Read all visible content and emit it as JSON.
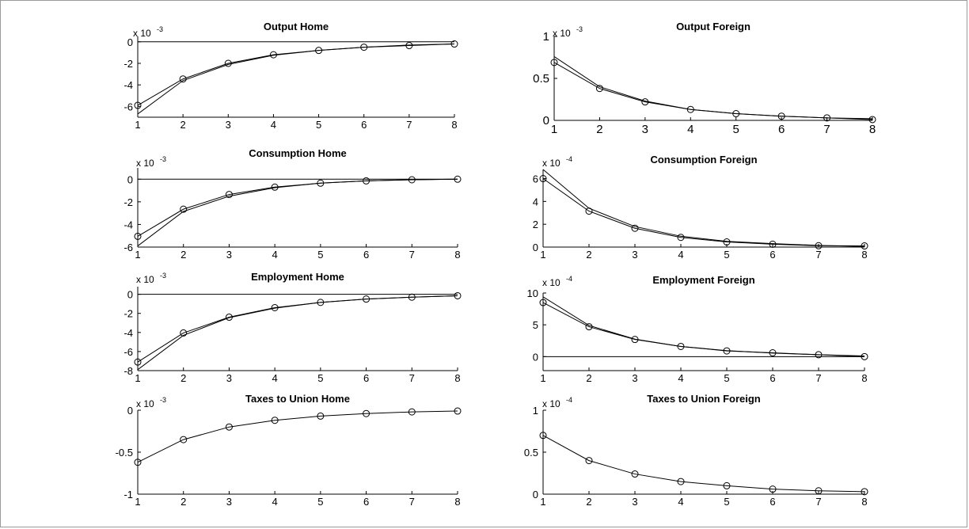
{
  "figure": {
    "charts": [
      {
        "title": "Output Home",
        "multiplier": {
          "base": "x 10",
          "exp": "-3"
        },
        "x_ticks": [
          "1",
          "2",
          "3",
          "4",
          "5",
          "6",
          "7",
          "8"
        ],
        "y_ticks": [
          "0",
          "-2",
          "-4",
          "-6"
        ]
      },
      {
        "title": "Output Foreign",
        "multiplier": {
          "base": "x 10",
          "exp": "-3"
        },
        "x_ticks": [
          "1",
          "2",
          "3",
          "4",
          "5",
          "6",
          "7",
          "8"
        ],
        "y_ticks": [
          "1",
          "0.5",
          "0"
        ]
      },
      {
        "title": "Consumption Home",
        "multiplier": {
          "base": "x 10",
          "exp": "-3"
        },
        "x_ticks": [
          "1",
          "2",
          "3",
          "4",
          "5",
          "6",
          "7",
          "8"
        ],
        "y_ticks": [
          "0",
          "-2",
          "-4",
          "-6"
        ]
      },
      {
        "title": "Consumption Foreign",
        "multiplier": {
          "base": "x 10",
          "exp": "-4"
        },
        "x_ticks": [
          "1",
          "2",
          "3",
          "4",
          "5",
          "6",
          "7",
          "8"
        ],
        "y_ticks": [
          "6",
          "4",
          "2",
          "0"
        ]
      },
      {
        "title": "Employment Home",
        "multiplier": {
          "base": "x 10",
          "exp": "-3"
        },
        "x_ticks": [
          "1",
          "2",
          "3",
          "4",
          "5",
          "6",
          "7",
          "8"
        ],
        "y_ticks": [
          "0",
          "-2",
          "-4",
          "-6",
          "-8"
        ]
      },
      {
        "title": "Employment Foreign",
        "multiplier": {
          "base": "x 10",
          "exp": "-4"
        },
        "x_ticks": [
          "1",
          "2",
          "3",
          "4",
          "5",
          "6",
          "7",
          "8"
        ],
        "y_ticks": [
          "10",
          "5",
          "0"
        ]
      },
      {
        "title": "Taxes to Union Home",
        "multiplier": {
          "base": "x 10",
          "exp": "-3"
        },
        "x_ticks": [
          "1",
          "2",
          "3",
          "4",
          "5",
          "6",
          "7",
          "8"
        ],
        "y_ticks": [
          "0",
          "-0.5",
          "-1"
        ]
      },
      {
        "title": "Taxes to Union Foreign",
        "multiplier": {
          "base": "x 10",
          "exp": "-4"
        },
        "x_ticks": [
          "1",
          "2",
          "3",
          "4",
          "5",
          "6",
          "7",
          "8"
        ],
        "y_ticks": [
          "1",
          "0.5",
          "0"
        ]
      }
    ]
  },
  "chart_data": [
    {
      "type": "line",
      "title": "Output Home",
      "x": [
        1,
        2,
        3,
        4,
        5,
        6,
        7,
        8
      ],
      "ylim": [
        -7,
        0.5
      ],
      "series": [
        {
          "values": [
            -5.9,
            -3.45,
            -2.0,
            -1.2,
            -0.8,
            -0.5,
            -0.35,
            -0.2
          ],
          "marker": "circle"
        },
        {
          "values": [
            -6.7,
            -3.6,
            -2.1,
            -1.25,
            -0.8,
            -0.5,
            -0.3,
            -0.2
          ]
        }
      ],
      "y_multiplier": "x 10^-3",
      "grid": false
    },
    {
      "type": "line",
      "title": "Output Foreign",
      "x": [
        1,
        2,
        3,
        4,
        5,
        6,
        7,
        8
      ],
      "ylim": [
        0,
        1
      ],
      "series": [
        {
          "values": [
            0.69,
            0.38,
            0.22,
            0.13,
            0.08,
            0.05,
            0.03,
            0.01
          ],
          "marker": "circle"
        },
        {
          "values": [
            0.76,
            0.4,
            0.23,
            0.13,
            0.08,
            0.05,
            0.03,
            0.02
          ]
        }
      ],
      "y_multiplier": "x 10^-3",
      "grid": false
    },
    {
      "type": "line",
      "title": "Consumption Home",
      "x": [
        1,
        2,
        3,
        4,
        5,
        6,
        7,
        8
      ],
      "ylim": [
        -6,
        1
      ],
      "series": [
        {
          "values": [
            -5.05,
            -2.65,
            -1.35,
            -0.7,
            -0.35,
            -0.15,
            -0.05,
            0.0
          ],
          "marker": "circle"
        },
        {
          "values": [
            -5.9,
            -2.85,
            -1.5,
            -0.75,
            -0.35,
            -0.15,
            -0.05,
            0.0
          ]
        }
      ],
      "y_multiplier": "x 10^-3",
      "grid": false
    },
    {
      "type": "line",
      "title": "Consumption Foreign",
      "x": [
        1,
        2,
        3,
        4,
        5,
        6,
        7,
        8
      ],
      "ylim": [
        0,
        6.8
      ],
      "series": [
        {
          "values": [
            6.0,
            3.15,
            1.65,
            0.85,
            0.45,
            0.25,
            0.12,
            0.1
          ],
          "marker": "circle"
        },
        {
          "values": [
            6.8,
            3.4,
            1.8,
            0.95,
            0.5,
            0.3,
            0.15,
            0.05
          ]
        }
      ],
      "y_multiplier": "x 10^-4",
      "grid": false
    },
    {
      "type": "line",
      "title": "Employment Home",
      "x": [
        1,
        2,
        3,
        4,
        5,
        6,
        7,
        8
      ],
      "ylim": [
        -8,
        0.8
      ],
      "series": [
        {
          "values": [
            -7.1,
            -4.05,
            -2.4,
            -1.4,
            -0.85,
            -0.5,
            -0.3,
            -0.15
          ],
          "marker": "circle"
        },
        {
          "values": [
            -7.9,
            -4.3,
            -2.45,
            -1.45,
            -0.85,
            -0.5,
            -0.3,
            -0.15
          ]
        }
      ],
      "y_multiplier": "x 10^-3",
      "grid": false
    },
    {
      "type": "line",
      "title": "Employment Foreign",
      "x": [
        1,
        2,
        3,
        4,
        5,
        6,
        7,
        8
      ],
      "ylim": [
        -2.2,
        10
      ],
      "series": [
        {
          "values": [
            8.5,
            4.7,
            2.7,
            1.6,
            0.9,
            0.6,
            0.3,
            0.0
          ],
          "marker": "circle"
        },
        {
          "values": [
            9.4,
            4.9,
            2.75,
            1.6,
            0.95,
            0.55,
            0.3,
            0.1
          ]
        }
      ],
      "y_multiplier": "x 10^-4",
      "grid": false
    },
    {
      "type": "line",
      "title": "Taxes to Union Home",
      "x": [
        1,
        2,
        3,
        4,
        5,
        6,
        7,
        8
      ],
      "ylim": [
        -1,
        0
      ],
      "series": [
        {
          "values": [
            -0.62,
            -0.35,
            -0.2,
            -0.12,
            -0.07,
            -0.04,
            -0.02,
            -0.01
          ],
          "marker": "circle"
        }
      ],
      "y_multiplier": "x 10^-3",
      "grid": false
    },
    {
      "type": "line",
      "title": "Taxes to Union Foreign",
      "x": [
        1,
        2,
        3,
        4,
        5,
        6,
        7,
        8
      ],
      "ylim": [
        0,
        1
      ],
      "series": [
        {
          "values": [
            0.7,
            0.4,
            0.24,
            0.15,
            0.1,
            0.06,
            0.04,
            0.03
          ],
          "marker": "circle"
        }
      ],
      "y_multiplier": "x 10^-4",
      "grid": false
    }
  ]
}
